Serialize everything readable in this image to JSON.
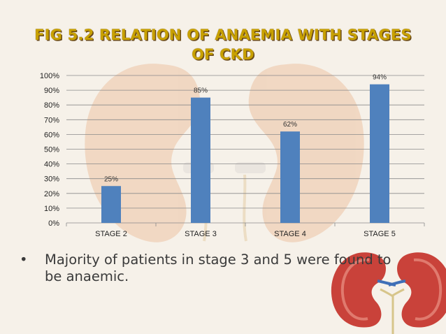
{
  "slide": {
    "title_line1": "FIG 5.2 RELATION OF ANAEMIA WITH STAGES",
    "title_line2": "OF CKD",
    "bullet_symbol": "•",
    "bullet_text": "Majority of patients in stage 3 and 5 were found to be anaemic."
  },
  "colors": {
    "background": "#f6f1e9",
    "bar": "#4f81bd",
    "title": "#c8a100",
    "kidney_background": "#f0d3bd",
    "kidney_red": "#c9423a"
  },
  "chart_data": {
    "type": "bar",
    "title": "",
    "xlabel": "",
    "ylabel": "",
    "categories": [
      "STAGE 2",
      "STAGE 3",
      "STAGE 4",
      "STAGE 5"
    ],
    "values": [
      25,
      85,
      62,
      94
    ],
    "value_labels": [
      "25%",
      "85%",
      "62%",
      "94%"
    ],
    "ylim": [
      0,
      100
    ],
    "yticks": [
      0,
      10,
      20,
      30,
      40,
      50,
      60,
      70,
      80,
      90,
      100
    ],
    "ytick_labels": [
      "0%",
      "10%",
      "20%",
      "30%",
      "40%",
      "50%",
      "60%",
      "70%",
      "80%",
      "90%",
      "100%"
    ],
    "grid": true,
    "legend": "none"
  }
}
